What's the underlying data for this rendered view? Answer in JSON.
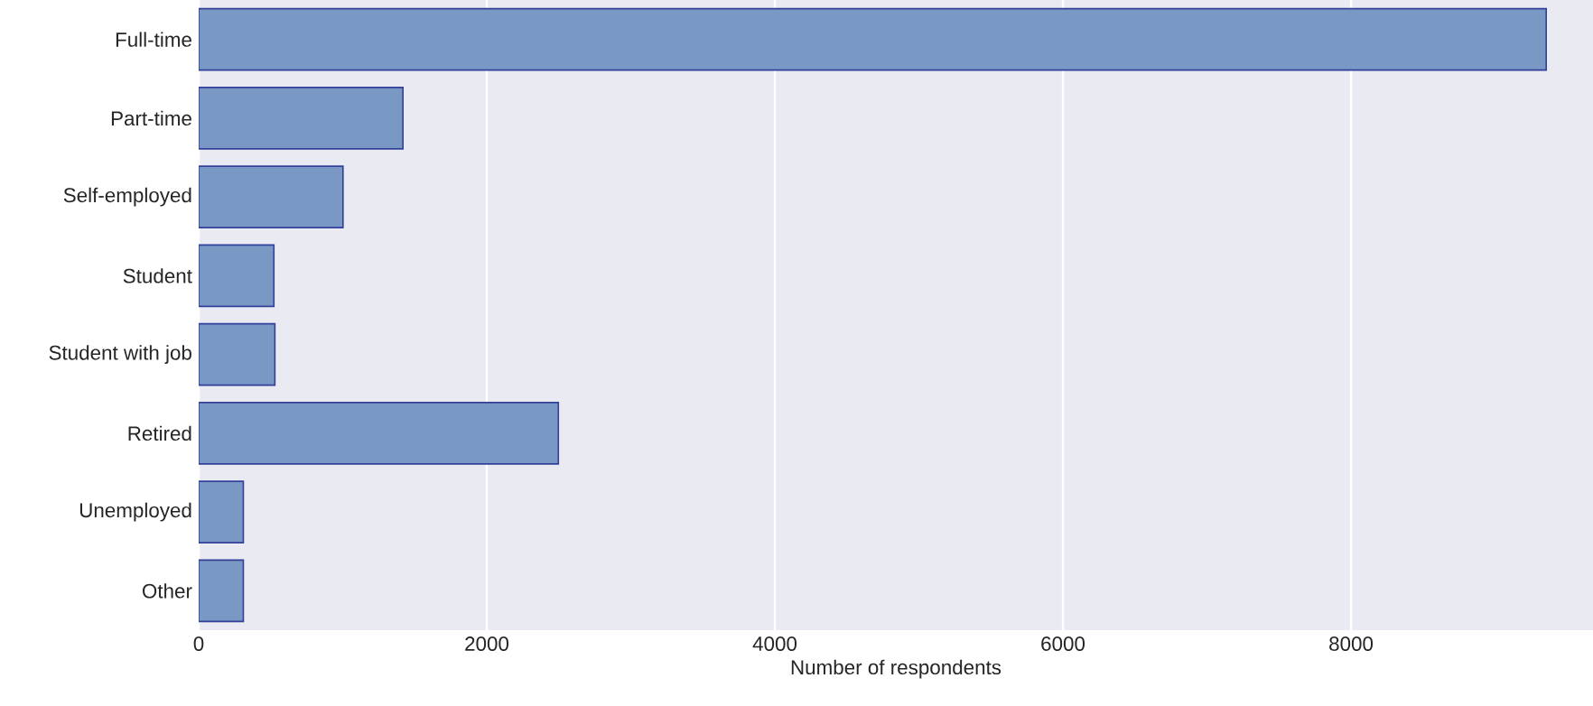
{
  "chart_data": {
    "type": "bar",
    "orientation": "horizontal",
    "categories": [
      "Full-time",
      "Part-time",
      "Self-employed",
      "Student",
      "Student with job",
      "Retired",
      "Unemployed",
      "Other"
    ],
    "values": [
      9355,
      1418,
      1002,
      522,
      529,
      2497,
      310,
      310
    ],
    "color": "#7a98c4",
    "xlabel": "Number of respondents",
    "xlim": [
      0,
      9680
    ],
    "xticks": [
      0,
      2000,
      4000,
      6000,
      8000
    ],
    "grid": "x"
  }
}
